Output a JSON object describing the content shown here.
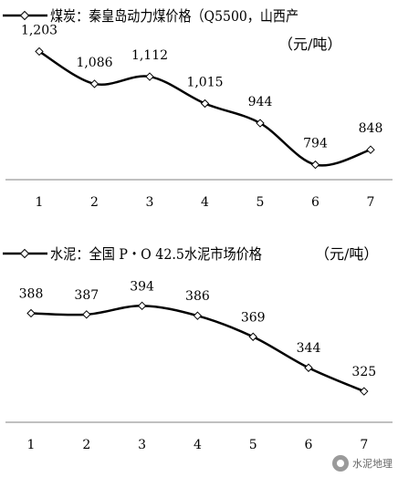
{
  "chart_data": [
    {
      "type": "line",
      "legend_label": "煤炭：秦皇岛动力煤价格（Q5500，山西产",
      "unit": "（元/吨）",
      "categories": [
        "1",
        "2",
        "3",
        "4",
        "5",
        "6",
        "7"
      ],
      "value_labels": [
        "1,203",
        "1,086",
        "1,112",
        "1,015",
        "944",
        "794",
        "848"
      ],
      "values": [
        1203,
        1086,
        1112,
        1015,
        944,
        794,
        848
      ],
      "ylim": [
        740,
        1290
      ],
      "smooth": true,
      "marker": "diamond-open",
      "grid": false
    },
    {
      "type": "line",
      "legend_label": "水泥：全国 P・O 42.5水泥市场价格",
      "unit": "（元/吨）",
      "categories": [
        "1",
        "2",
        "3",
        "4",
        "5",
        "6",
        "7"
      ],
      "value_labels": [
        "388",
        "387",
        "394",
        "386",
        "369",
        "344",
        "325"
      ],
      "values": [
        388,
        387,
        394,
        386,
        369,
        344,
        325
      ],
      "ylim": [
        300,
        420
      ],
      "smooth": true,
      "marker": "diamond-open",
      "grid": false
    }
  ],
  "watermark": {
    "text": "水泥地理",
    "icon": "wechat-logo-icon"
  },
  "colors": {
    "line": "#000000",
    "axis": "#808080",
    "background": "#ffffff"
  }
}
